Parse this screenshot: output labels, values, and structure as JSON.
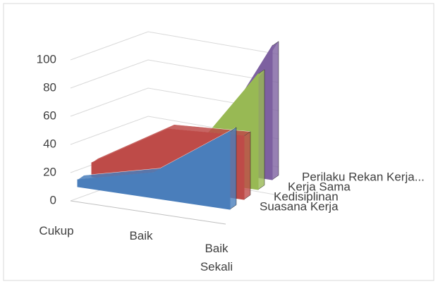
{
  "chart_data": {
    "type": "area3d",
    "categories": [
      "Cukup",
      "Baik",
      "Baik Sekali"
    ],
    "series": [
      {
        "name": "Suasana Kerja",
        "color": "#4a7ebb",
        "values": [
          5,
          18,
          55
        ]
      },
      {
        "name": "Kedisiplinan",
        "color": "#be4b48",
        "values": [
          10,
          42,
          45
        ]
      },
      {
        "name": "Kerja Sama",
        "color": "#98b954",
        "values": [
          0,
          10,
          82
        ]
      },
      {
        "name": "Perilaku Rekan Kerja...",
        "color": "#7d60a0",
        "values": [
          0,
          0,
          95
        ]
      }
    ],
    "ylim": [
      0,
      100
    ],
    "yticks": [
      0,
      20,
      40,
      60,
      80,
      100
    ],
    "grid": true
  }
}
